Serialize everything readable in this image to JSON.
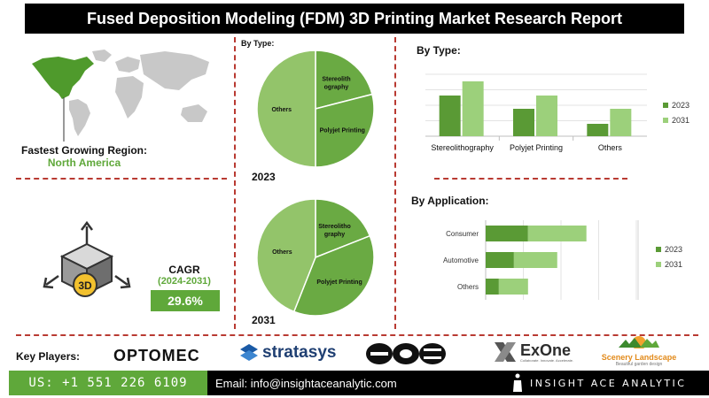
{
  "header": {
    "title": "Fused Deposition Modeling (FDM) 3D Printing Market Research Report"
  },
  "region": {
    "label": "Fastest Growing Region:",
    "value": "North America"
  },
  "cagr": {
    "label": "CAGR",
    "period": "(2024-2031)",
    "value": "29.6%"
  },
  "pie_section": {
    "heading": "By Type:"
  },
  "key_players": {
    "label": "Key Players:",
    "logos": [
      "OPTOMEC",
      "stratasys",
      "eos",
      "ExOne",
      "Scenery Landscape"
    ],
    "exone_tagline": "Collaborate. Innovate. Accelerate.",
    "scenery_tagline": "Beautiful garden design"
  },
  "footer": {
    "phone": "US: +1 551 226 6109",
    "email": "Email: info@insightaceanalytic.com",
    "brand": "INSIGHT ACE ANALYTIC"
  },
  "colors": {
    "dark_green": "#5a9a35",
    "light_green": "#9cd07b",
    "pie_mid": "#6aaa43",
    "pie_light": "#93c46a",
    "accent_red": "#b93a32"
  },
  "chart_data": [
    {
      "type": "pie",
      "title": "2023",
      "slices": [
        {
          "label": "Stereolithography",
          "value": 21
        },
        {
          "label": "Polyjet Printing",
          "value": 29
        },
        {
          "label": "Others",
          "value": 50
        }
      ]
    },
    {
      "type": "pie",
      "title": "2031",
      "slices": [
        {
          "label": "Stereolitho graphy",
          "value": 19
        },
        {
          "label": "Polyjet Printing",
          "value": 37
        },
        {
          "label": "Others",
          "value": 44
        }
      ]
    },
    {
      "type": "bar",
      "title": "By Type:",
      "categories": [
        "Stereolithography",
        "Polyjet Printing",
        "Others"
      ],
      "series": [
        {
          "name": "2023",
          "values": [
            46,
            31,
            14
          ]
        },
        {
          "name": "2031",
          "values": [
            62,
            46,
            31
          ]
        }
      ],
      "ylim": [
        0,
        70
      ],
      "grid": true,
      "legend": "right"
    },
    {
      "type": "bar",
      "orientation": "horizontal",
      "stacked": true,
      "title": "By Application:",
      "categories": [
        "Consumer",
        "Automotive",
        "Others"
      ],
      "series": [
        {
          "name": "2023",
          "values": [
            45,
            30,
            14
          ]
        },
        {
          "name": "2031",
          "values": [
            62,
            46,
            31
          ]
        }
      ],
      "xlim": [
        0,
        160
      ],
      "grid": true,
      "legend": "right"
    }
  ]
}
